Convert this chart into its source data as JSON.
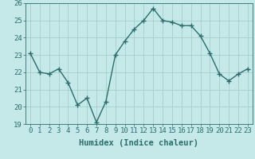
{
  "x": [
    0,
    1,
    2,
    3,
    4,
    5,
    6,
    7,
    8,
    9,
    10,
    11,
    12,
    13,
    14,
    15,
    16,
    17,
    18,
    19,
    20,
    21,
    22,
    23
  ],
  "y": [
    23.1,
    22.0,
    21.9,
    22.2,
    21.4,
    20.1,
    20.5,
    19.1,
    20.3,
    23.0,
    23.8,
    24.5,
    25.0,
    25.7,
    25.0,
    24.9,
    24.7,
    24.7,
    24.1,
    23.1,
    21.9,
    21.5,
    21.9,
    22.2
  ],
  "line_color": "#2a6e6e",
  "marker": "+",
  "marker_size": 5,
  "bg_color": "#c5e8e8",
  "grid_color": "#a0c8c8",
  "xlabel": "Humidex (Indice chaleur)",
  "ylim": [
    19,
    26
  ],
  "xlim": [
    -0.5,
    23.5
  ],
  "yticks": [
    19,
    20,
    21,
    22,
    23,
    24,
    25,
    26
  ],
  "xticks": [
    0,
    1,
    2,
    3,
    4,
    5,
    6,
    7,
    8,
    9,
    10,
    11,
    12,
    13,
    14,
    15,
    16,
    17,
    18,
    19,
    20,
    21,
    22,
    23
  ],
  "xlabel_fontsize": 7.5,
  "tick_fontsize": 6.5,
  "line_width": 1.0
}
